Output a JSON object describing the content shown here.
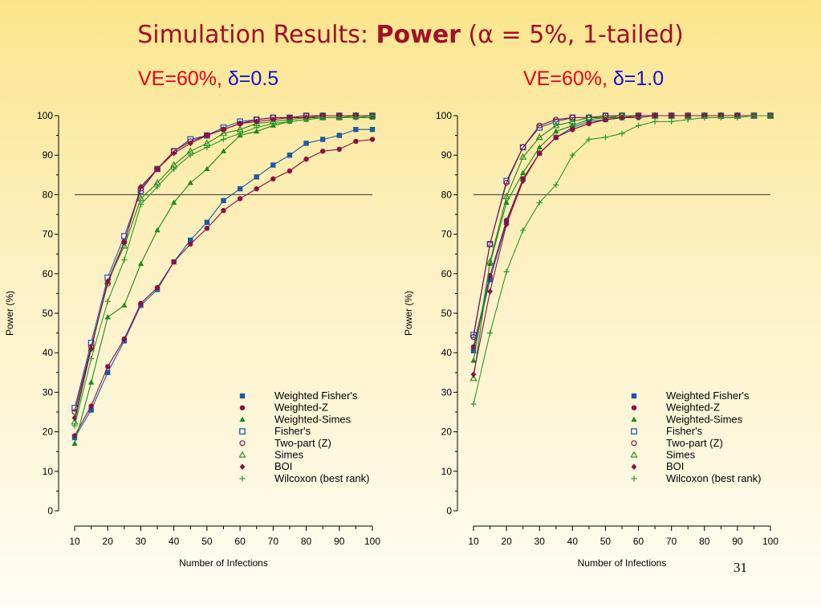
{
  "slide": {
    "title_prefix": "Simulation Results: ",
    "title_bold": "Power",
    "title_open": " (",
    "title_alpha": "α",
    "title_rest": " = 5%, 1-tailed)",
    "page_number": "31"
  },
  "colors": {
    "title": "#a0102a",
    "ve_text": "#e8001c",
    "delta_text": "#1010d8",
    "weighted_fisher": "#1a5aa8",
    "weighted_z": "#8a1044",
    "weighted_simes": "#1a8a1a",
    "fishers": "#1a5aa8",
    "two_part": "#8a1044",
    "simes": "#1a8a1a",
    "boi": "#8a1044",
    "wilcoxon": "#2a9a2a"
  },
  "chart_data": [
    {
      "type": "line",
      "subtitle_ve": "VE=60%, ",
      "subtitle_delta": "δ=0.5",
      "xlabel": "Number of Infections",
      "ylabel": "Power (%)",
      "xlim": [
        10,
        100
      ],
      "ylim": [
        0,
        100
      ],
      "xticks": [
        "10",
        "20",
        "30",
        "40",
        "50",
        "60",
        "70",
        "80",
        "90",
        "100"
      ],
      "yticks": [
        "0",
        "10",
        "20",
        "30",
        "40",
        "50",
        "60",
        "70",
        "80",
        "90",
        "100"
      ],
      "reference_line": 80,
      "legend_position": "bottom-right",
      "x": [
        10,
        15,
        20,
        25,
        30,
        35,
        40,
        45,
        50,
        55,
        60,
        65,
        70,
        75,
        80,
        85,
        90,
        95,
        100
      ],
      "series": [
        {
          "name": "Weighted Fisher's",
          "marker": "filled-square",
          "color": "#1a5aa8",
          "values": [
            18.5,
            25.5,
            35,
            43,
            52,
            56,
            63,
            68.5,
            73,
            78.5,
            81.5,
            84.5,
            87.5,
            90,
            93,
            94,
            95,
            96.5,
            96.5
          ]
        },
        {
          "name": "Weighted-Z",
          "marker": "filled-circle",
          "color": "#8a1044",
          "values": [
            19,
            26.5,
            36.5,
            43.5,
            52.5,
            56.5,
            63,
            67.5,
            71.5,
            76,
            79,
            81.5,
            84,
            86,
            89,
            91,
            91.5,
            93.5,
            94
          ]
        },
        {
          "name": "Weighted-Simes",
          "marker": "filled-triangle",
          "color": "#1a8a1a",
          "values": [
            17,
            32.5,
            49,
            52,
            62.5,
            71,
            78,
            83,
            86.5,
            91,
            95,
            96,
            97.5,
            98.5,
            99,
            99.5,
            99.5,
            99.5,
            99.5
          ]
        },
        {
          "name": "Fisher's",
          "marker": "open-square",
          "color": "#1a5aa8",
          "values": [
            26,
            42.5,
            59,
            69.5,
            81,
            86.5,
            91,
            94,
            95,
            97,
            98.5,
            99,
            99.5,
            99.5,
            100,
            100,
            100,
            100,
            100
          ]
        },
        {
          "name": "Two-part (Z)",
          "marker": "open-circle",
          "color": "#8a1044",
          "values": [
            25,
            41.5,
            57.5,
            68,
            81.5,
            86.5,
            91,
            93.5,
            95,
            96.5,
            98,
            99,
            99.5,
            99.5,
            100,
            100,
            100,
            100,
            100
          ]
        },
        {
          "name": "Simes",
          "marker": "open-triangle",
          "color": "#1a8a1a",
          "values": [
            22.5,
            41,
            58,
            67,
            79,
            83,
            87.5,
            91,
            93,
            95.5,
            96.5,
            98,
            98.5,
            99,
            99.5,
            99.5,
            99.5,
            100,
            100
          ]
        },
        {
          "name": "BOI",
          "marker": "filled-diamond",
          "color": "#8a1044",
          "values": [
            23.5,
            41,
            58,
            68,
            82,
            86.5,
            90.5,
            93,
            95,
            96.5,
            98,
            98.5,
            99,
            99.5,
            99.5,
            100,
            100,
            100,
            100
          ]
        },
        {
          "name": "Wilcoxon (best rank)",
          "marker": "plus",
          "color": "#2a9a2a",
          "values": [
            21.5,
            38.5,
            53,
            63.5,
            77.5,
            82,
            86.5,
            90,
            92,
            94,
            95.5,
            97,
            98,
            98.5,
            99,
            99.5,
            99.5,
            99.5,
            100
          ]
        }
      ]
    },
    {
      "type": "line",
      "subtitle_ve": "VE=60%, ",
      "subtitle_delta": "δ=1.0",
      "xlabel": "Number of Infections",
      "ylabel": "Power (%)",
      "xlim": [
        10,
        100
      ],
      "ylim": [
        0,
        100
      ],
      "xticks": [
        "10",
        "20",
        "30",
        "40",
        "50",
        "60",
        "70",
        "80",
        "90",
        "100"
      ],
      "yticks": [
        "0",
        "10",
        "20",
        "30",
        "40",
        "50",
        "60",
        "70",
        "80",
        "90",
        "100"
      ],
      "reference_line": 80,
      "legend_position": "bottom-right",
      "x": [
        10,
        15,
        20,
        25,
        30,
        35,
        40,
        45,
        50,
        55,
        60,
        65,
        70,
        75,
        80,
        85,
        90,
        95,
        100
      ],
      "series": [
        {
          "name": "Weighted Fisher's",
          "marker": "filled-square",
          "color": "#1a5aa8",
          "values": [
            40.5,
            58.5,
            73,
            84,
            90.5,
            94.5,
            97,
            98.5,
            99,
            99.5,
            100,
            100,
            100,
            100,
            100,
            100,
            100,
            100,
            100
          ]
        },
        {
          "name": "Weighted-Z",
          "marker": "filled-circle",
          "color": "#8a1044",
          "values": [
            41.5,
            59.5,
            73.5,
            84,
            90.5,
            94.5,
            96.5,
            98,
            99,
            99.5,
            99.5,
            100,
            100,
            100,
            100,
            100,
            100,
            100,
            100
          ]
        },
        {
          "name": "Weighted-Simes",
          "marker": "filled-triangle",
          "color": "#1a8a1a",
          "values": [
            38,
            62.5,
            78,
            85.5,
            92,
            96,
            97.5,
            99,
            99.5,
            99.5,
            100,
            100,
            100,
            100,
            100,
            100,
            100,
            100,
            100
          ]
        },
        {
          "name": "Fisher's",
          "marker": "open-square",
          "color": "#1a5aa8",
          "values": [
            44.5,
            67.5,
            83.5,
            92,
            97,
            98.5,
            99.5,
            99.5,
            100,
            100,
            100,
            100,
            100,
            100,
            100,
            100,
            100,
            100,
            100
          ]
        },
        {
          "name": "Two-part (Z)",
          "marker": "open-circle",
          "color": "#8a1044",
          "values": [
            44,
            67.5,
            83,
            92,
            97.5,
            99,
            99.5,
            99.5,
            100,
            100,
            100,
            100,
            100,
            100,
            100,
            100,
            100,
            100,
            100
          ]
        },
        {
          "name": "Simes",
          "marker": "open-triangle",
          "color": "#1a8a1a",
          "values": [
            33.5,
            63,
            79.5,
            89.5,
            94.5,
            97.5,
            98.5,
            99.5,
            99.5,
            100,
            100,
            100,
            100,
            100,
            100,
            100,
            100,
            100,
            100
          ]
        },
        {
          "name": "BOI",
          "marker": "filled-diamond",
          "color": "#8a1044",
          "values": [
            34.5,
            55.5,
            72.5,
            83.5,
            90.5,
            94.5,
            96.5,
            98,
            99,
            99.5,
            100,
            100,
            100,
            100,
            100,
            100,
            100,
            100,
            100
          ]
        },
        {
          "name": "Wilcoxon (best rank)",
          "marker": "plus",
          "color": "#2a9a2a",
          "values": [
            27,
            45,
            60.5,
            71,
            78,
            82.5,
            90,
            94,
            94.5,
            95.5,
            97.5,
            98.5,
            98.5,
            99,
            99.5,
            99.5,
            99.5,
            100,
            100
          ]
        }
      ]
    }
  ]
}
